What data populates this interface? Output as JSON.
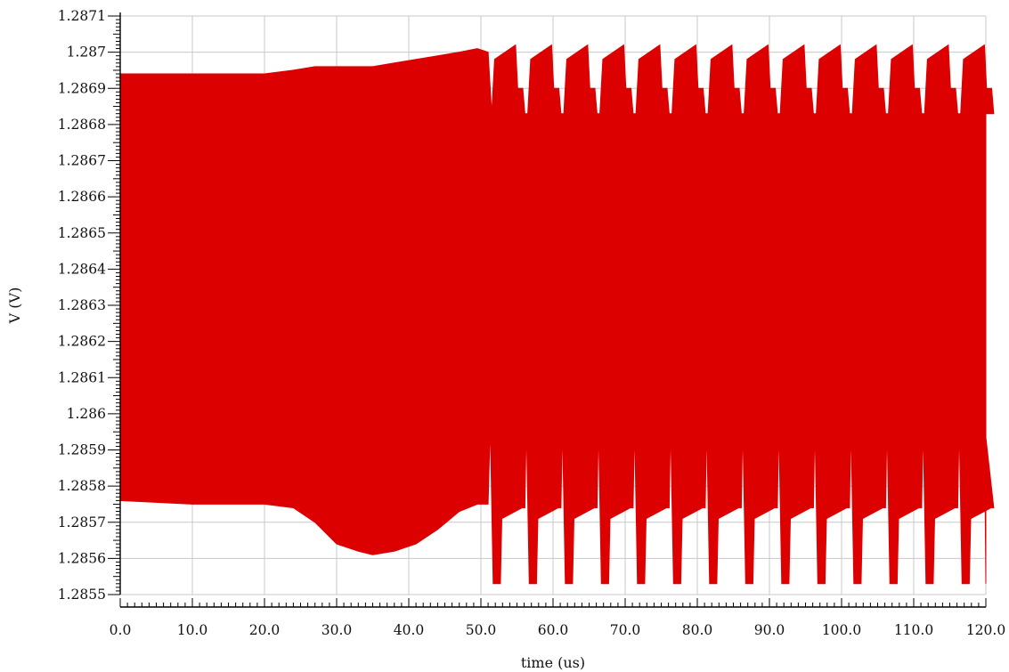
{
  "chart_data": {
    "type": "area",
    "xlabel": "time (us)",
    "ylabel": "V (V)",
    "xlim": [
      0,
      120
    ],
    "ylim": [
      1.2855,
      1.2871
    ],
    "grid": true,
    "series_color": "#dd0000",
    "x_ticks": [
      "0.0",
      "10.0",
      "20.0",
      "30.0",
      "40.0",
      "50.0",
      "60.0",
      "70.0",
      "80.0",
      "90.0",
      "100.0",
      "110.0",
      "120.0"
    ],
    "y_ticks": [
      "1.2855",
      "1.2856",
      "1.2857",
      "1.2858",
      "1.2859",
      "1.286",
      "1.2861",
      "1.2862",
      "1.2863",
      "1.2864",
      "1.2865",
      "1.2866",
      "1.2867",
      "1.2868",
      "1.2869",
      "1.287",
      "1.2871"
    ],
    "envelope": {
      "x": [
        0,
        10,
        20,
        24,
        27,
        30,
        33,
        35,
        38,
        41,
        44,
        47,
        49.5,
        51
      ],
      "upper": [
        1.28694,
        1.28694,
        1.28694,
        1.28695,
        1.28696,
        1.28696,
        1.28696,
        1.28696,
        1.28697,
        1.28698,
        1.28699,
        1.287,
        1.28701,
        1.287
      ],
      "lower": [
        1.28576,
        1.28575,
        1.28575,
        1.28574,
        1.2857,
        1.28564,
        1.28562,
        1.28561,
        1.28562,
        1.28564,
        1.28568,
        1.28573,
        1.28575,
        1.28575
      ]
    },
    "bursts": {
      "starts": [
        51.5,
        56.5,
        61.5,
        66.5,
        71.5,
        76.5,
        81.5,
        86.5,
        91.5,
        96.5,
        101.5,
        106.5,
        111.5,
        116.5
      ],
      "top_peak": 1.28702,
      "top_dip": 1.28683,
      "top_shoulder": 1.2869,
      "bottom_spike": 1.28597,
      "bottom_trough": 1.28553,
      "bottom_shoulder": 1.28574
    }
  }
}
